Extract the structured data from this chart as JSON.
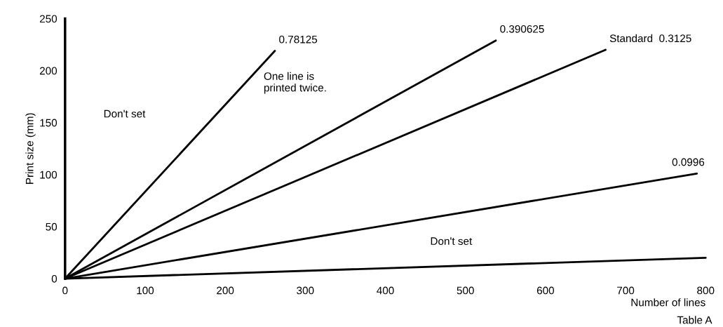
{
  "chart_data": {
    "type": "line",
    "xlabel": "Number of lines",
    "ylabel": "Print size (mm)",
    "xlim": [
      0,
      800
    ],
    "ylim": [
      0,
      250
    ],
    "xticks": [
      0,
      100,
      200,
      300,
      400,
      500,
      600,
      700,
      800
    ],
    "yticks": [
      0,
      50,
      100,
      150,
      200,
      250
    ],
    "series": [
      {
        "name": "0.78125",
        "color": "#000000",
        "x": [
          0,
          262
        ],
        "values": [
          0,
          219
        ]
      },
      {
        "name": "0.390625",
        "color": "#000000",
        "x": [
          0,
          538
        ],
        "values": [
          0,
          229
        ]
      },
      {
        "name": "Standard  0.3125",
        "color": "#000000",
        "x": [
          0,
          675
        ],
        "values": [
          0,
          220
        ]
      },
      {
        "name": "0.0996",
        "color": "#000000",
        "x": [
          0,
          789
        ],
        "values": [
          0,
          101
        ]
      },
      {
        "color": "#000000",
        "x": [
          0,
          800
        ],
        "values": [
          0,
          20
        ]
      }
    ],
    "annotations": [
      "Don't set",
      "One line is\nprinted twice.",
      "Don't set",
      "Table A"
    ],
    "grid": false,
    "legend": false,
    "marker": "none",
    "line_style": "solid"
  }
}
